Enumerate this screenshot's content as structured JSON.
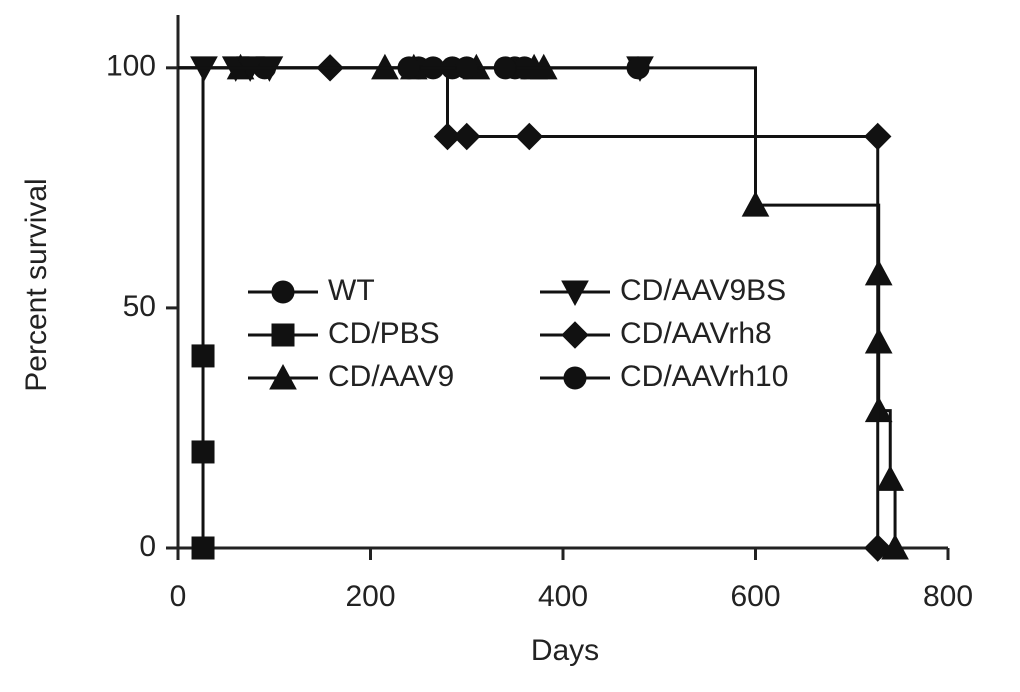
{
  "chart_data": {
    "type": "line",
    "step": true,
    "x_label": "Days",
    "y_label": "Percent survival",
    "xlim": [
      0,
      800
    ],
    "xticks": [
      0,
      200,
      400,
      600,
      800
    ],
    "ylim": [
      0,
      111
    ],
    "yticks": [
      0,
      50,
      100
    ],
    "legend": "center",
    "series": [
      {
        "name": "WT",
        "color": "#111",
        "marker": "circle",
        "x": [
          0,
          90,
          250,
          265,
          285,
          350,
          360
        ],
        "values": [
          100,
          100,
          100,
          100,
          100,
          100,
          100
        ]
      },
      {
        "name": "CD/PBS",
        "color": "#111",
        "marker": "square",
        "x": [
          0,
          26,
          26,
          26
        ],
        "values": [
          100,
          40,
          20,
          0
        ]
      },
      {
        "name": "CD/AAV9",
        "color": "#111",
        "marker": "triangle",
        "x": [
          0,
          65,
          215,
          245,
          310,
          370,
          380,
          600,
          728,
          728,
          728,
          740,
          745
        ],
        "values": [
          100,
          100,
          100,
          100,
          100,
          100,
          100,
          71.4,
          57.1,
          42.9,
          28.6,
          14.3,
          0
        ]
      },
      {
        "name": "CD/AAV9BS",
        "color": "#111",
        "marker": "triangle-down",
        "x": [
          0,
          27,
          60,
          75,
          95,
          480
        ],
        "values": [
          100,
          100,
          100,
          100,
          100,
          100
        ]
      },
      {
        "name": "CD/AAVrh8",
        "color": "#111",
        "marker": "diamond",
        "x": [
          0,
          158,
          280,
          300,
          365,
          727,
          727
        ],
        "values": [
          100,
          100,
          85.7,
          85.7,
          85.7,
          85.7,
          0
        ]
      },
      {
        "name": "CD/AAVrh10",
        "color": "#111",
        "marker": "circle",
        "x": [
          0,
          240,
          300,
          340,
          478
        ],
        "values": [
          100,
          100,
          100,
          100,
          100
        ]
      }
    ]
  }
}
